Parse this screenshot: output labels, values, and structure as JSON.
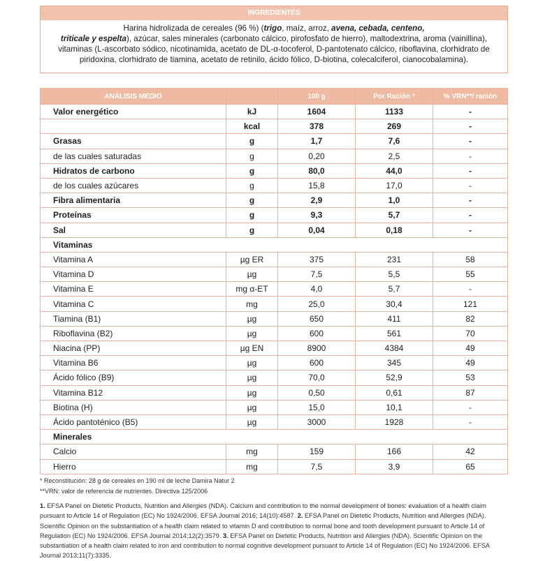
{
  "ingredients": {
    "title": "INGREDIENTES",
    "segments": [
      "Harina hidrolizada de cereales (96 %) (",
      "trigo",
      ", maíz, arroz, ",
      "avena, cebada, centeno,",
      "triticale y espelta",
      "), azúcar, sales minerales (carbonato cálcico, pirofosfato de hierro), maltodextrina, aroma (vainillina), vitaminas (L-ascorbato sódico, nicotinamida, acetato de DL-α-tocoferol, D-pantotenato cálcico, riboflavina, clorhidrato de piridoxina, clorhidrato de tiamina, acetato de retinilo, ácido fólico, D-biotina, colecalciferol, cianocobalamina)."
    ]
  },
  "table": {
    "header": [
      "ANÁLISIS MEDIO",
      null,
      "100 g",
      "Por Ración *",
      "% VRN**/ ración"
    ],
    "rows": [
      [
        "Valor energético",
        "kJ",
        "1604",
        "1133",
        "-"
      ],
      [
        null,
        "kcal",
        "378",
        "269",
        "-"
      ],
      [
        "Grasas",
        "g",
        "1,7",
        "7,6",
        "-"
      ],
      [
        "de las cuales saturadas",
        "g",
        "0,20",
        "2,5",
        "-"
      ],
      [
        "Hidratos de carbono",
        "g",
        "80,0",
        "44,0",
        "-"
      ],
      [
        "de los cuales azúcares",
        "g",
        "15,8",
        "17,0",
        "-"
      ],
      [
        "Fibra alimentaria",
        "g",
        "2,9",
        "1,0",
        "-"
      ],
      [
        "Proteínas",
        "g",
        "9,3",
        "5,7",
        "-"
      ],
      [
        "Sal",
        "g",
        "0,04",
        "0,18",
        "-"
      ],
      [
        "Vitaminas"
      ],
      [
        "Vitamina A",
        "µg ER",
        "375",
        "231",
        "58"
      ],
      [
        "Vitamina D",
        "µg",
        "7,5",
        "5,5",
        "55"
      ],
      [
        "Vitamina E",
        "mg α-ET",
        "4,0",
        "5,7",
        "-"
      ],
      [
        "Vitamina C",
        "mg",
        "25,0",
        "30,4",
        "121"
      ],
      [
        "Tiamina (B1)",
        "µg",
        "650",
        "411",
        "82"
      ],
      [
        "Riboflavina (B2)",
        "µg",
        "600",
        "561",
        "70"
      ],
      [
        "Niacina (PP)",
        "µg EN",
        "8900",
        "4384",
        "49"
      ],
      [
        "Vitamina B6",
        "µg",
        "600",
        "345",
        "49"
      ],
      [
        "Ácido fólico (B9)",
        "µg",
        "70,0",
        "52,9",
        "53"
      ],
      [
        "Vitamina B12",
        "µg",
        "0,50",
        "0,61",
        "87"
      ],
      [
        "Biotina (H)",
        "µg",
        "15,0",
        "10,1",
        "-"
      ],
      [
        "Ácido pantoténico (B5)",
        "µg",
        "3000",
        "1928",
        "-"
      ],
      [
        "Minerales"
      ],
      [
        "Calcio",
        "mg",
        "159",
        "166",
        "42"
      ],
      [
        "Hierro",
        "mg",
        "7,5",
        "3,9",
        "65"
      ]
    ]
  },
  "footnotes": [
    "* Reconstitución: 28 g de cereales en 190 ml de leche Damira Natur 2",
    "**VRN: valor de referencia de nutrientes. Directiva 125/2006"
  ],
  "references": [
    "1.",
    " EFSA Panel on Dietetic Products, Nutrition and Allergies (NDA). Calcium and contribution to the normal development of bones: evaluation of a health claim pursuant to Article 14 of Regulation (EC) No 1924/2006. EFSA Journal 2016; 14(10):4587. ",
    "2.",
    " EFSA Panel on Dietetic Products, Nutrition and Allergies (NDA). Scientific Opinion on the substantiation of a health claim related to vitamin D and contribution to normal bone and tooth development pursuant to Article 14 of Regulation (EC) No 1924/2006. EFSA Journal 2014;12(2):3579. ",
    "3.",
    " EFSA Panel on Dietetic Products, Nutrition and Allergies (NDA). Scientific Opinion on the substantiation of a health claim related to iron and contribution to normal cognitive development pursuant to Article 14 of Regulation (EC) No 1924/2006. EFSA Journal 2013;11(7):3335."
  ]
}
